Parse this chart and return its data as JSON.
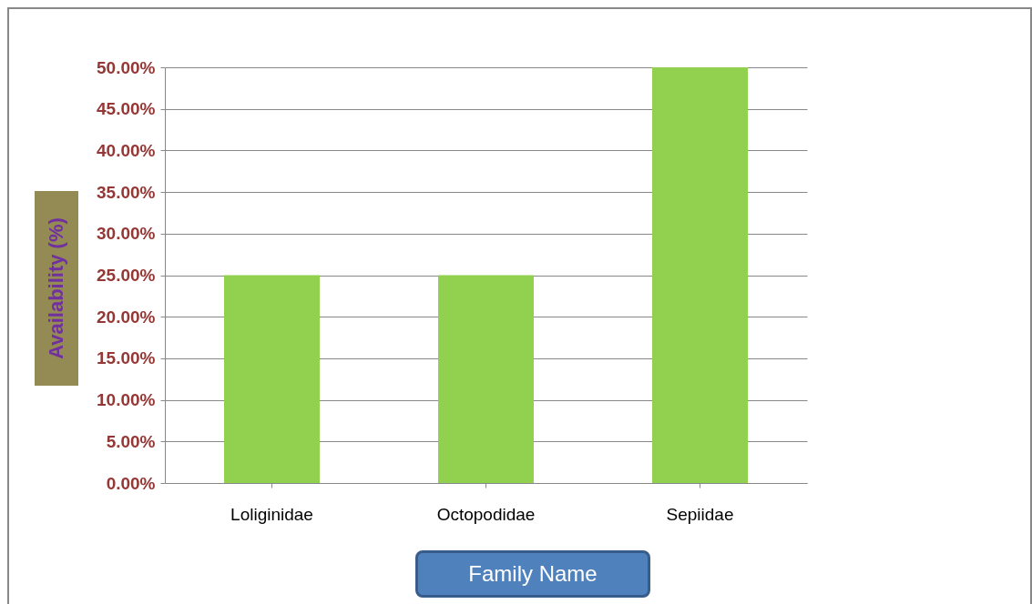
{
  "chart_data": {
    "type": "bar",
    "xlabel": "Family Name",
    "ylabel": "Availability (%)",
    "categories": [
      "Loliginidae",
      "Octopodidae",
      "Sepiidae"
    ],
    "values": [
      25,
      25,
      50
    ],
    "color": "#92d050",
    "ylim": [
      0,
      50
    ],
    "yticks": [
      {
        "value": 0,
        "label": "0.00%"
      },
      {
        "value": 5,
        "label": "5.00%"
      },
      {
        "value": 10,
        "label": "10.00%"
      },
      {
        "value": 15,
        "label": "15.00%"
      },
      {
        "value": 20,
        "label": "20.00%"
      },
      {
        "value": 25,
        "label": "25.00%"
      },
      {
        "value": 30,
        "label": "30.00%"
      },
      {
        "value": 35,
        "label": "35.00%"
      },
      {
        "value": 40,
        "label": "40.00%"
      },
      {
        "value": 45,
        "label": "45.00%"
      },
      {
        "value": 50,
        "label": "50.00%"
      }
    ],
    "grid": "y"
  }
}
